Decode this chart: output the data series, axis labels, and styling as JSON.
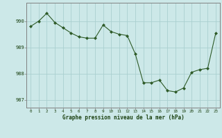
{
  "x": [
    0,
    1,
    2,
    3,
    4,
    5,
    6,
    7,
    8,
    9,
    10,
    11,
    12,
    13,
    14,
    15,
    16,
    17,
    18,
    19,
    20,
    21,
    22,
    23
  ],
  "y": [
    989.8,
    990.0,
    990.3,
    989.95,
    989.75,
    989.55,
    989.4,
    989.35,
    989.35,
    989.85,
    989.6,
    989.5,
    989.45,
    988.75,
    987.65,
    987.65,
    987.75,
    987.35,
    987.3,
    987.45,
    988.05,
    988.15,
    988.2,
    989.55
  ],
  "line_color": "#2d5a27",
  "marker_color": "#2d5a27",
  "bg_color": "#cce8e8",
  "grid_color": "#aad0d0",
  "xlabel": "Graphe pression niveau de la mer (hPa)",
  "xlabel_color": "#1a4010",
  "yticks": [
    987,
    988,
    989,
    990
  ],
  "xticks": [
    0,
    1,
    2,
    3,
    4,
    5,
    6,
    7,
    8,
    9,
    10,
    11,
    12,
    13,
    14,
    15,
    16,
    17,
    18,
    19,
    20,
    21,
    22,
    23
  ],
  "ylim": [
    986.7,
    990.7
  ],
  "xlim": [
    -0.5,
    23.5
  ],
  "tick_color": "#1a4010",
  "axis_color": "#808080",
  "figsize": [
    3.2,
    2.0
  ],
  "dpi": 100
}
